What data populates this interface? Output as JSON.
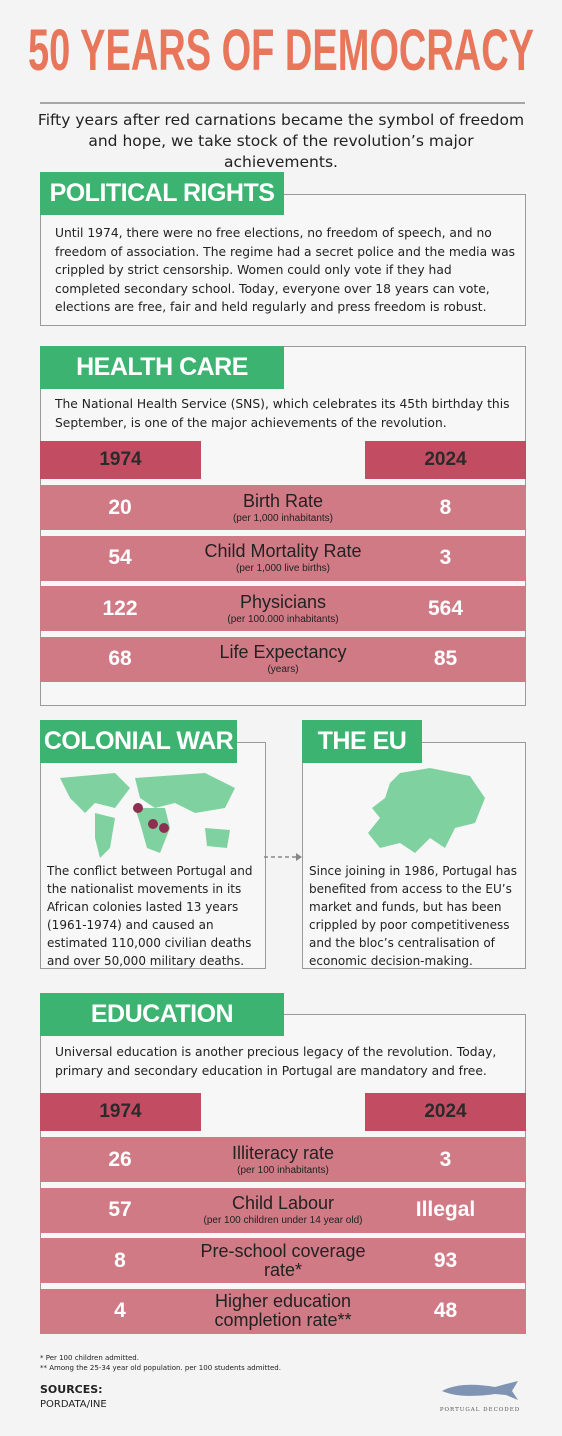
{
  "header": {
    "title": "50 YEARS OF DEMOCRACY",
    "subtitle": "Fifty years after red carnations became the symbol of freedom and hope, we take stock of the revolution’s major achievements."
  },
  "political_rights": {
    "title": "POLITICAL RIGHTS",
    "text": "Until 1974, there were no free elections, no freedom of speech, and no freedom of association. The regime had a secret police and the media was crippled by strict censorship. Women could only vote if they had completed secondary school. Today, everyone over 18 years can vote, elections are free, fair and held regularly and press freedom is robust."
  },
  "health_care": {
    "title": "HEALTH CARE",
    "intro": "The National Health Service (SNS), which celebrates its 45th birthday this September, is one of the major achievements of the revolution.",
    "columns": [
      "1974",
      "2024"
    ],
    "rows": [
      {
        "before": 20,
        "label": "Birth Rate",
        "note": "(per 1,000 inhabitants)",
        "after": 8
      },
      {
        "before": 54,
        "label": "Child Mortality Rate",
        "note": "(per 1,000 live births)",
        "after": 3
      },
      {
        "before": 122,
        "label": "Physicians",
        "note": "(per 100.000 inhabitants)",
        "after": 564
      },
      {
        "before": 68,
        "label": "Life Expectancy",
        "note": "(years)",
        "after": 85
      }
    ]
  },
  "colonial_war": {
    "title": "COLONIAL WAR",
    "text": "The conflict between Portugal and the nationalist movements in its African colonies lasted 13 years (1961-1974) and caused an estimated 110,000 civilian deaths and over 50,000 military deaths."
  },
  "eu": {
    "title": "THE EU",
    "text": "Since joining in 1986, Portugal has benefited from access to the EU’s market and funds, but has been crippled by poor competitiveness and the bloc’s centralisation of economic decision-making."
  },
  "education": {
    "title": "EDUCATION",
    "intro": "Universal education is another precious legacy of the revolution. Today, primary and secondary education in Portugal are mandatory and free.",
    "columns": [
      "1974",
      "2024"
    ],
    "rows": [
      {
        "before": 26,
        "label": "Illiteracy rate",
        "note": "(per 100 inhabitants)",
        "after": 3
      },
      {
        "before": 57,
        "label": "Child Labour",
        "note": "(per 100 children under 14 year old)",
        "after": "Illegal"
      },
      {
        "before": 8,
        "label": "Pre-school coverage rate*",
        "after": 93
      },
      {
        "before": 4,
        "label": "Higher education completion rate**",
        "after": 48
      }
    ]
  },
  "footnotes": [
    "* Per 100 children admitted.",
    "** Among the 25-34 year old population. per 100 students admitted."
  ],
  "sources": {
    "title": "SOURCES:",
    "text": "PORDATA/INE"
  },
  "logo": "PORTUGAL DECODED"
}
